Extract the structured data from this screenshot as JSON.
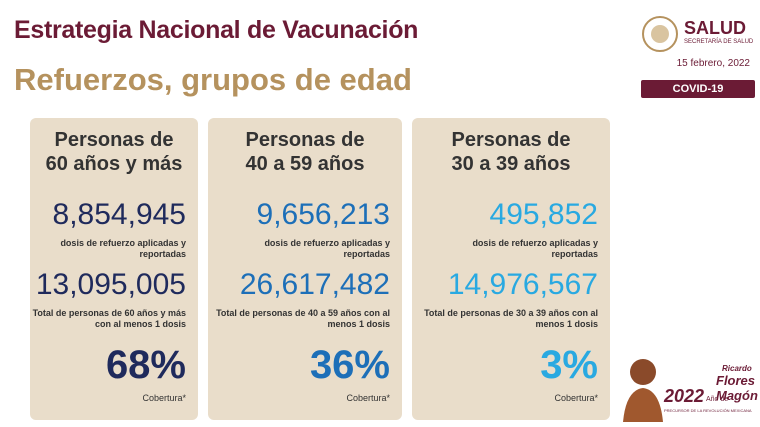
{
  "header": {
    "title": "Estrategia Nacional de Vacunación",
    "subtitle": "Refuerzos, grupos de edad"
  },
  "logo": {
    "name": "SALUD",
    "subname": "SECRETARÍA DE SALUD"
  },
  "date": "15 febrero, 2022",
  "badge": "COVID-19",
  "cards": [
    {
      "title": [
        "Personas de",
        "60 años y más"
      ],
      "boosters": "8,854,945",
      "boosters_label": "dosis de refuerzo aplicadas y reportadas",
      "total": "13,095,005",
      "total_label": "Total de personas de 60 años y más con al menos 1 dosis",
      "coverage": "68%",
      "coverage_label": "Cobertura*"
    },
    {
      "title": [
        "Personas de",
        "40 a 59 años"
      ],
      "boosters": "9,656,213",
      "boosters_label": "dosis de refuerzo aplicadas y reportadas",
      "total": "26,617,482",
      "total_label": "Total de personas de 40 a 59 años con al menos 1 dosis",
      "coverage": "36%",
      "coverage_label": "Cobertura*"
    },
    {
      "title": [
        "Personas de",
        "30 a 39 años"
      ],
      "boosters": "495,852",
      "boosters_label": "dosis de refuerzo aplicadas y reportadas",
      "total": "14,976,567",
      "total_label": "Total de personas de 30 a 39 años con al menos 1 dosis",
      "coverage": "3%",
      "coverage_label": "Cobertura*"
    }
  ],
  "footer_logo": {
    "year": "2022",
    "year_text": "Año de",
    "name_1": "Ricardo",
    "name_2": "Flores",
    "name_3": "Magón",
    "tagline": "PRECURSOR DE LA REVOLUCIÓN MEXICANA"
  }
}
